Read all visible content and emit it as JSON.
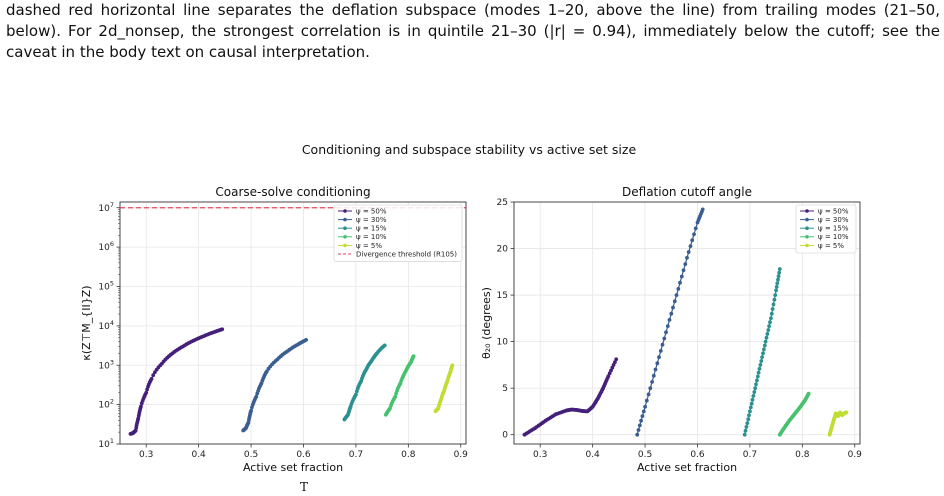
{
  "caption": {
    "line1": "dashed red horizontal line separates the deflation subspace (modes 1–20, above the line) from trailing modes (21–50,",
    "line2": "below). For 2d_nonsep, the strongest correlation is in quintile 21–30 (|r| = 0.94), immediately below the cutoff; see the",
    "line3": "caveat in the body text on causal interpretation."
  },
  "figure": {
    "suptitle": "Conditioning and subspace stability vs active set size",
    "partial_text": "T"
  },
  "colors": {
    "psi50": "#45207a",
    "psi30": "#3b5e91",
    "psi15": "#2b9090",
    "psi10": "#48c16e",
    "psi5": "#c0de32",
    "threshold": "#e8435a"
  },
  "chart_data": [
    {
      "type": "line",
      "title": "Coarse-solve conditioning",
      "xlabel": "Active set fraction",
      "ylabel": "κ(Z⊤M_{II}Z)",
      "yscale": "log",
      "xlim": [
        0.25,
        0.91
      ],
      "ylim": [
        10,
        14000000
      ],
      "xticks": [
        "0.3",
        "0.4",
        "0.5",
        "0.6",
        "0.7",
        "0.8",
        "0.9"
      ],
      "yticks": [
        "10^1",
        "10^2",
        "10^3",
        "10^4",
        "10^5",
        "10^6",
        "10^7"
      ],
      "grid": true,
      "legend_position": "top-right",
      "legend": [
        "ψ = 50%",
        "ψ = 30%",
        "ψ = 15%",
        "ψ = 10%",
        "ψ = 5%",
        "Divergence threshold (R105)"
      ],
      "threshold": {
        "name": "Divergence threshold (R105)",
        "y": 10000000
      },
      "series": [
        {
          "name": "ψ = 50%",
          "x": [
            0.27,
            0.275,
            0.28,
            0.285,
            0.29,
            0.3,
            0.31,
            0.33,
            0.35,
            0.37,
            0.39,
            0.41,
            0.43,
            0.445
          ],
          "y": [
            18,
            19,
            22,
            45,
            90,
            200,
            450,
            1100,
            2000,
            3000,
            4200,
            5500,
            7000,
            8200
          ]
        },
        {
          "name": "ψ = 30%",
          "x": [
            0.485,
            0.49,
            0.495,
            0.5,
            0.51,
            0.52,
            0.53,
            0.55,
            0.57,
            0.59,
            0.605
          ],
          "y": [
            22,
            25,
            35,
            70,
            160,
            350,
            700,
            1400,
            2300,
            3400,
            4400
          ]
        },
        {
          "name": "ψ = 15%",
          "x": [
            0.678,
            0.685,
            0.69,
            0.7,
            0.71,
            0.72,
            0.73,
            0.74,
            0.755
          ],
          "y": [
            42,
            55,
            90,
            180,
            400,
            800,
            1300,
            2000,
            3200
          ]
        },
        {
          "name": "ψ = 10%",
          "x": [
            0.757,
            0.765,
            0.775,
            0.785,
            0.795,
            0.805,
            0.81
          ],
          "y": [
            55,
            80,
            160,
            350,
            700,
            1200,
            1700
          ]
        },
        {
          "name": "ψ = 5%",
          "x": [
            0.852,
            0.857,
            0.862,
            0.868,
            0.874,
            0.88,
            0.884
          ],
          "y": [
            68,
            80,
            130,
            220,
            380,
            650,
            1000
          ]
        }
      ]
    },
    {
      "type": "line",
      "title": "Deflation cutoff angle",
      "xlabel": "Active set fraction",
      "ylabel": "θ₂₀ (degrees)",
      "xlim": [
        0.25,
        0.91
      ],
      "ylim": [
        -1,
        25
      ],
      "xticks": [
        "0.3",
        "0.4",
        "0.5",
        "0.6",
        "0.7",
        "0.8",
        "0.9"
      ],
      "yticks": [
        "0",
        "5",
        "10",
        "15",
        "20",
        "25"
      ],
      "grid": true,
      "legend_position": "top-right",
      "legend": [
        "ψ = 50%",
        "ψ = 30%",
        "ψ = 15%",
        "ψ = 10%",
        "ψ = 5%"
      ],
      "series": [
        {
          "name": "ψ = 50%",
          "x": [
            0.27,
            0.29,
            0.31,
            0.33,
            0.35,
            0.36,
            0.37,
            0.38,
            0.39,
            0.4,
            0.41,
            0.42,
            0.43,
            0.445
          ],
          "y": [
            0.0,
            0.7,
            1.5,
            2.2,
            2.6,
            2.7,
            2.65,
            2.55,
            2.5,
            3.0,
            3.9,
            5.0,
            6.3,
            8.1
          ]
        },
        {
          "name": "ψ = 30%",
          "x": [
            0.485,
            0.5,
            0.52,
            0.54,
            0.56,
            0.58,
            0.6,
            0.61
          ],
          "y": [
            0.0,
            3.0,
            7.0,
            11.0,
            15.0,
            19.0,
            22.8,
            24.2
          ]
        },
        {
          "name": "ψ = 15%",
          "x": [
            0.69,
            0.7,
            0.71,
            0.72,
            0.73,
            0.74,
            0.75,
            0.757
          ],
          "y": [
            0.0,
            2.5,
            5.0,
            7.5,
            10.0,
            12.5,
            15.5,
            17.8
          ]
        },
        {
          "name": "ψ = 10%",
          "x": [
            0.757,
            0.765,
            0.775,
            0.785,
            0.795,
            0.805,
            0.812
          ],
          "y": [
            0.0,
            0.7,
            1.5,
            2.2,
            2.9,
            3.7,
            4.4
          ]
        },
        {
          "name": "ψ = 5%",
          "x": [
            0.852,
            0.856,
            0.86,
            0.864,
            0.868,
            0.872,
            0.876,
            0.88,
            0.884
          ],
          "y": [
            0.0,
            0.8,
            1.6,
            2.3,
            2.0,
            2.4,
            2.1,
            2.3,
            2.4
          ]
        }
      ]
    }
  ]
}
